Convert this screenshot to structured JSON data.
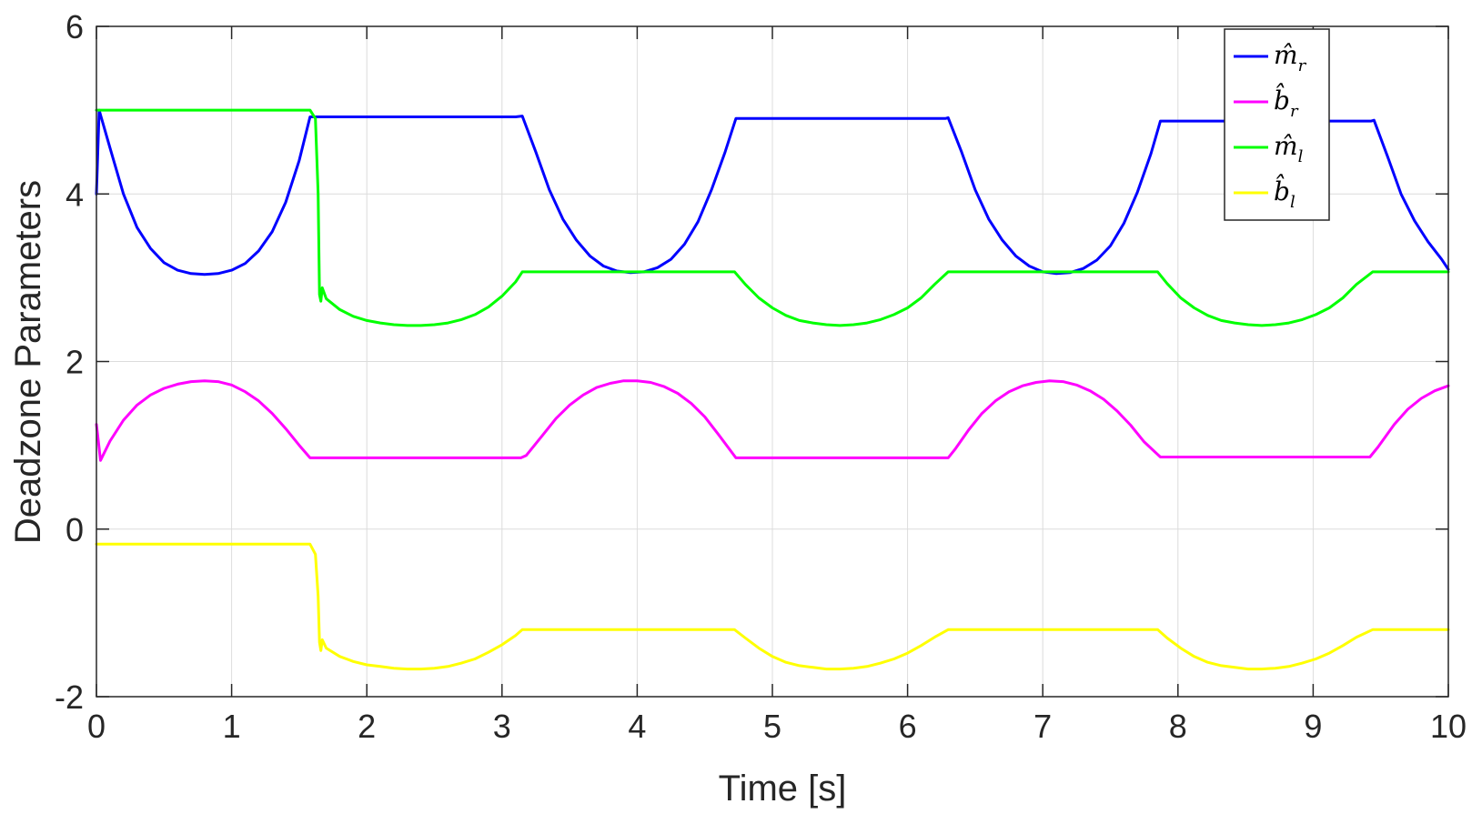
{
  "chart_data": {
    "type": "line",
    "title": "",
    "xlabel": "Time [s]",
    "ylabel": "Deadzone Parameters",
    "xlim": [
      0,
      10
    ],
    "ylim": [
      -2,
      6
    ],
    "xticks": [
      "0",
      "1",
      "2",
      "3",
      "4",
      "5",
      "6",
      "7",
      "8",
      "9",
      "10"
    ],
    "yticks": [
      "-2",
      "0",
      "2",
      "4",
      "6"
    ],
    "grid": true,
    "legend_position": "top-right",
    "series": [
      {
        "name": "m̂_r",
        "legend": {
          "base": "m̂",
          "sub": "r"
        },
        "color": "#0000ff",
        "points": [
          [
            0.0,
            4.0
          ],
          [
            0.02,
            5.0
          ],
          [
            0.1,
            4.55
          ],
          [
            0.2,
            4.0
          ],
          [
            0.3,
            3.6
          ],
          [
            0.4,
            3.35
          ],
          [
            0.5,
            3.18
          ],
          [
            0.6,
            3.09
          ],
          [
            0.7,
            3.05
          ],
          [
            0.8,
            3.04
          ],
          [
            0.9,
            3.05
          ],
          [
            1.0,
            3.09
          ],
          [
            1.1,
            3.17
          ],
          [
            1.2,
            3.32
          ],
          [
            1.3,
            3.55
          ],
          [
            1.4,
            3.9
          ],
          [
            1.5,
            4.4
          ],
          [
            1.58,
            4.92
          ],
          [
            1.7,
            4.92
          ],
          [
            2.5,
            4.92
          ],
          [
            3.1,
            4.92
          ],
          [
            3.15,
            4.93
          ],
          [
            3.25,
            4.5
          ],
          [
            3.35,
            4.05
          ],
          [
            3.45,
            3.7
          ],
          [
            3.55,
            3.45
          ],
          [
            3.65,
            3.26
          ],
          [
            3.75,
            3.14
          ],
          [
            3.85,
            3.08
          ],
          [
            3.95,
            3.06
          ],
          [
            4.05,
            3.07
          ],
          [
            4.15,
            3.12
          ],
          [
            4.25,
            3.22
          ],
          [
            4.35,
            3.4
          ],
          [
            4.45,
            3.67
          ],
          [
            4.55,
            4.05
          ],
          [
            4.65,
            4.5
          ],
          [
            4.73,
            4.9
          ],
          [
            5.5,
            4.9
          ],
          [
            6.28,
            4.9
          ],
          [
            6.3,
            4.91
          ],
          [
            6.4,
            4.5
          ],
          [
            6.5,
            4.05
          ],
          [
            6.6,
            3.7
          ],
          [
            6.7,
            3.45
          ],
          [
            6.8,
            3.26
          ],
          [
            6.9,
            3.14
          ],
          [
            7.0,
            3.07
          ],
          [
            7.1,
            3.05
          ],
          [
            7.2,
            3.06
          ],
          [
            7.3,
            3.11
          ],
          [
            7.4,
            3.21
          ],
          [
            7.5,
            3.38
          ],
          [
            7.6,
            3.65
          ],
          [
            7.7,
            4.02
          ],
          [
            7.8,
            4.48
          ],
          [
            7.87,
            4.87
          ],
          [
            8.6,
            4.87
          ],
          [
            9.43,
            4.87
          ],
          [
            9.45,
            4.88
          ],
          [
            9.55,
            4.45
          ],
          [
            9.65,
            4.0
          ],
          [
            9.75,
            3.68
          ],
          [
            9.85,
            3.43
          ],
          [
            9.95,
            3.22
          ],
          [
            10.0,
            3.1
          ]
        ]
      },
      {
        "name": "b̂_r",
        "legend": {
          "base": "b̂",
          "sub": "r"
        },
        "color": "#ff00ff",
        "points": [
          [
            0.0,
            1.25
          ],
          [
            0.03,
            0.82
          ],
          [
            0.1,
            1.05
          ],
          [
            0.2,
            1.3
          ],
          [
            0.3,
            1.48
          ],
          [
            0.4,
            1.6
          ],
          [
            0.5,
            1.68
          ],
          [
            0.6,
            1.73
          ],
          [
            0.7,
            1.76
          ],
          [
            0.8,
            1.77
          ],
          [
            0.9,
            1.76
          ],
          [
            1.0,
            1.72
          ],
          [
            1.1,
            1.64
          ],
          [
            1.2,
            1.53
          ],
          [
            1.3,
            1.38
          ],
          [
            1.4,
            1.2
          ],
          [
            1.5,
            1.0
          ],
          [
            1.58,
            0.85
          ],
          [
            2.5,
            0.85
          ],
          [
            3.14,
            0.85
          ],
          [
            3.18,
            0.88
          ],
          [
            3.3,
            1.12
          ],
          [
            3.4,
            1.32
          ],
          [
            3.5,
            1.48
          ],
          [
            3.6,
            1.6
          ],
          [
            3.7,
            1.69
          ],
          [
            3.8,
            1.74
          ],
          [
            3.9,
            1.77
          ],
          [
            4.0,
            1.77
          ],
          [
            4.1,
            1.75
          ],
          [
            4.2,
            1.7
          ],
          [
            4.3,
            1.62
          ],
          [
            4.4,
            1.5
          ],
          [
            4.5,
            1.34
          ],
          [
            4.6,
            1.13
          ],
          [
            4.73,
            0.85
          ],
          [
            5.5,
            0.85
          ],
          [
            6.3,
            0.85
          ],
          [
            6.35,
            0.95
          ],
          [
            6.45,
            1.18
          ],
          [
            6.55,
            1.38
          ],
          [
            6.65,
            1.53
          ],
          [
            6.75,
            1.64
          ],
          [
            6.85,
            1.71
          ],
          [
            6.95,
            1.75
          ],
          [
            7.05,
            1.77
          ],
          [
            7.15,
            1.76
          ],
          [
            7.25,
            1.72
          ],
          [
            7.35,
            1.65
          ],
          [
            7.45,
            1.55
          ],
          [
            7.55,
            1.41
          ],
          [
            7.65,
            1.24
          ],
          [
            7.75,
            1.04
          ],
          [
            7.87,
            0.86
          ],
          [
            8.6,
            0.86
          ],
          [
            9.42,
            0.86
          ],
          [
            9.48,
            0.98
          ],
          [
            9.6,
            1.25
          ],
          [
            9.7,
            1.43
          ],
          [
            9.8,
            1.56
          ],
          [
            9.9,
            1.65
          ],
          [
            10.0,
            1.71
          ]
        ]
      },
      {
        "name": "m̂_l",
        "legend": {
          "base": "m̂",
          "sub": "l"
        },
        "color": "#00ff00",
        "points": [
          [
            0.0,
            5.0
          ],
          [
            0.5,
            5.0
          ],
          [
            1.0,
            5.0
          ],
          [
            1.58,
            5.0
          ],
          [
            1.62,
            4.9
          ],
          [
            1.64,
            4.0
          ],
          [
            1.65,
            2.8
          ],
          [
            1.66,
            2.72
          ],
          [
            1.67,
            2.88
          ],
          [
            1.7,
            2.75
          ],
          [
            1.8,
            2.62
          ],
          [
            1.9,
            2.54
          ],
          [
            2.0,
            2.49
          ],
          [
            2.1,
            2.46
          ],
          [
            2.2,
            2.44
          ],
          [
            2.3,
            2.43
          ],
          [
            2.4,
            2.43
          ],
          [
            2.5,
            2.44
          ],
          [
            2.6,
            2.46
          ],
          [
            2.7,
            2.5
          ],
          [
            2.8,
            2.56
          ],
          [
            2.9,
            2.65
          ],
          [
            3.0,
            2.78
          ],
          [
            3.1,
            2.95
          ],
          [
            3.15,
            3.07
          ],
          [
            4.0,
            3.07
          ],
          [
            4.72,
            3.07
          ],
          [
            4.8,
            2.92
          ],
          [
            4.9,
            2.76
          ],
          [
            5.0,
            2.64
          ],
          [
            5.1,
            2.55
          ],
          [
            5.2,
            2.49
          ],
          [
            5.3,
            2.46
          ],
          [
            5.4,
            2.44
          ],
          [
            5.5,
            2.43
          ],
          [
            5.6,
            2.44
          ],
          [
            5.7,
            2.46
          ],
          [
            5.8,
            2.5
          ],
          [
            5.9,
            2.56
          ],
          [
            6.0,
            2.64
          ],
          [
            6.1,
            2.76
          ],
          [
            6.2,
            2.92
          ],
          [
            6.3,
            3.07
          ],
          [
            7.0,
            3.07
          ],
          [
            7.85,
            3.07
          ],
          [
            7.92,
            2.93
          ],
          [
            8.02,
            2.76
          ],
          [
            8.12,
            2.64
          ],
          [
            8.22,
            2.55
          ],
          [
            8.32,
            2.49
          ],
          [
            8.42,
            2.46
          ],
          [
            8.52,
            2.44
          ],
          [
            8.62,
            2.43
          ],
          [
            8.72,
            2.44
          ],
          [
            8.82,
            2.46
          ],
          [
            8.92,
            2.5
          ],
          [
            9.02,
            2.56
          ],
          [
            9.12,
            2.64
          ],
          [
            9.22,
            2.76
          ],
          [
            9.32,
            2.92
          ],
          [
            9.44,
            3.07
          ],
          [
            10.0,
            3.07
          ]
        ]
      },
      {
        "name": "b̂_l",
        "legend": {
          "base": "b̂",
          "sub": "l"
        },
        "color": "#ffff00",
        "points": [
          [
            0.0,
            -0.18
          ],
          [
            0.5,
            -0.18
          ],
          [
            1.0,
            -0.18
          ],
          [
            1.58,
            -0.18
          ],
          [
            1.62,
            -0.3
          ],
          [
            1.64,
            -0.8
          ],
          [
            1.65,
            -1.35
          ],
          [
            1.66,
            -1.45
          ],
          [
            1.67,
            -1.32
          ],
          [
            1.7,
            -1.42
          ],
          [
            1.8,
            -1.52
          ],
          [
            1.9,
            -1.58
          ],
          [
            2.0,
            -1.62
          ],
          [
            2.1,
            -1.64
          ],
          [
            2.2,
            -1.66
          ],
          [
            2.3,
            -1.67
          ],
          [
            2.4,
            -1.67
          ],
          [
            2.5,
            -1.66
          ],
          [
            2.6,
            -1.64
          ],
          [
            2.7,
            -1.6
          ],
          [
            2.8,
            -1.55
          ],
          [
            2.9,
            -1.47
          ],
          [
            3.0,
            -1.38
          ],
          [
            3.1,
            -1.27
          ],
          [
            3.15,
            -1.2
          ],
          [
            4.0,
            -1.2
          ],
          [
            4.72,
            -1.2
          ],
          [
            4.8,
            -1.3
          ],
          [
            4.9,
            -1.42
          ],
          [
            5.0,
            -1.52
          ],
          [
            5.1,
            -1.59
          ],
          [
            5.2,
            -1.63
          ],
          [
            5.3,
            -1.65
          ],
          [
            5.4,
            -1.67
          ],
          [
            5.5,
            -1.67
          ],
          [
            5.6,
            -1.66
          ],
          [
            5.7,
            -1.64
          ],
          [
            5.8,
            -1.6
          ],
          [
            5.9,
            -1.55
          ],
          [
            6.0,
            -1.48
          ],
          [
            6.1,
            -1.39
          ],
          [
            6.2,
            -1.29
          ],
          [
            6.3,
            -1.2
          ],
          [
            7.0,
            -1.2
          ],
          [
            7.85,
            -1.2
          ],
          [
            7.92,
            -1.3
          ],
          [
            8.02,
            -1.42
          ],
          [
            8.12,
            -1.52
          ],
          [
            8.22,
            -1.59
          ],
          [
            8.32,
            -1.63
          ],
          [
            8.42,
            -1.65
          ],
          [
            8.52,
            -1.67
          ],
          [
            8.62,
            -1.67
          ],
          [
            8.72,
            -1.66
          ],
          [
            8.82,
            -1.64
          ],
          [
            8.92,
            -1.6
          ],
          [
            9.02,
            -1.55
          ],
          [
            9.12,
            -1.48
          ],
          [
            9.22,
            -1.39
          ],
          [
            9.32,
            -1.29
          ],
          [
            9.44,
            -1.2
          ],
          [
            10.0,
            -1.2
          ]
        ]
      }
    ]
  }
}
